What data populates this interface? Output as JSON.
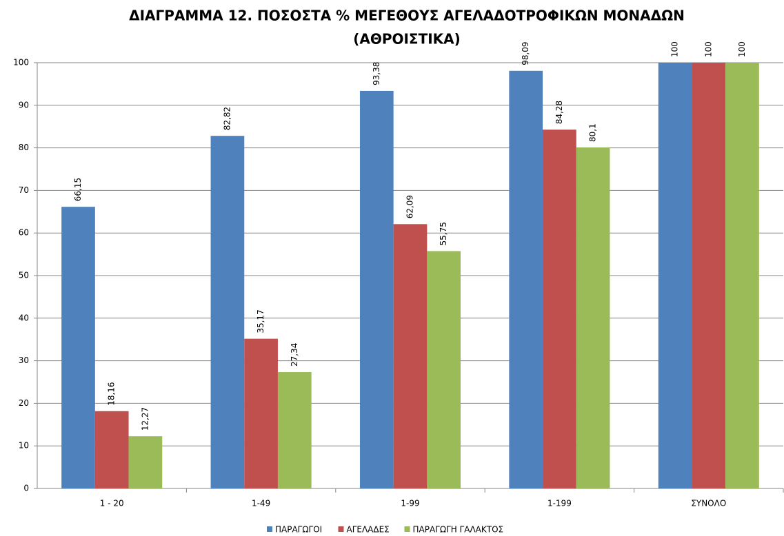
{
  "chart_data": {
    "type": "bar",
    "title": [
      "ΔΙΑΓΡΑΜΜΑ 12. ΠΟΣΟΣΤΑ %  ΜΕΓΕΘΟΥΣ ΑΓΕΛΑΔΟΤΡΟΦΙΚΩΝ ΜΟΝΑΔΩΝ",
      "(ΑΘΡΟΙΣΤΙΚΑ)"
    ],
    "categories": [
      "1 - 20",
      "1-49",
      "1-99",
      "1-199",
      "ΣΥΝΟΛΟ"
    ],
    "series": [
      {
        "name": "ΠΑΡΑΓΩΓΟΙ",
        "color": "#4f81bd",
        "values": [
          66.15,
          82.82,
          93.38,
          98.09,
          100
        ],
        "value_labels": [
          "66,15",
          "82,82",
          "93,38",
          "98,09",
          "100"
        ]
      },
      {
        "name": "ΑΓΕΛΑΔΕΣ",
        "color": "#c0504d",
        "values": [
          18.16,
          35.17,
          62.09,
          84.28,
          100
        ],
        "value_labels": [
          "18,16",
          "35,17",
          "62,09",
          "84,28",
          "100"
        ]
      },
      {
        "name": "ΠΑΡΑΓΩΓΗ ΓΑΛΑΚΤΟΣ",
        "color": "#9bbb59",
        "values": [
          12.27,
          27.34,
          55.75,
          80.1,
          100
        ],
        "value_labels": [
          "12,27",
          "27,34",
          "55,75",
          "80,1",
          "100"
        ]
      }
    ],
    "ylim": [
      0,
      100
    ],
    "yticks": [
      0,
      10,
      20,
      30,
      40,
      50,
      60,
      70,
      80,
      90,
      100
    ],
    "grid": true,
    "legend": "bottom"
  }
}
